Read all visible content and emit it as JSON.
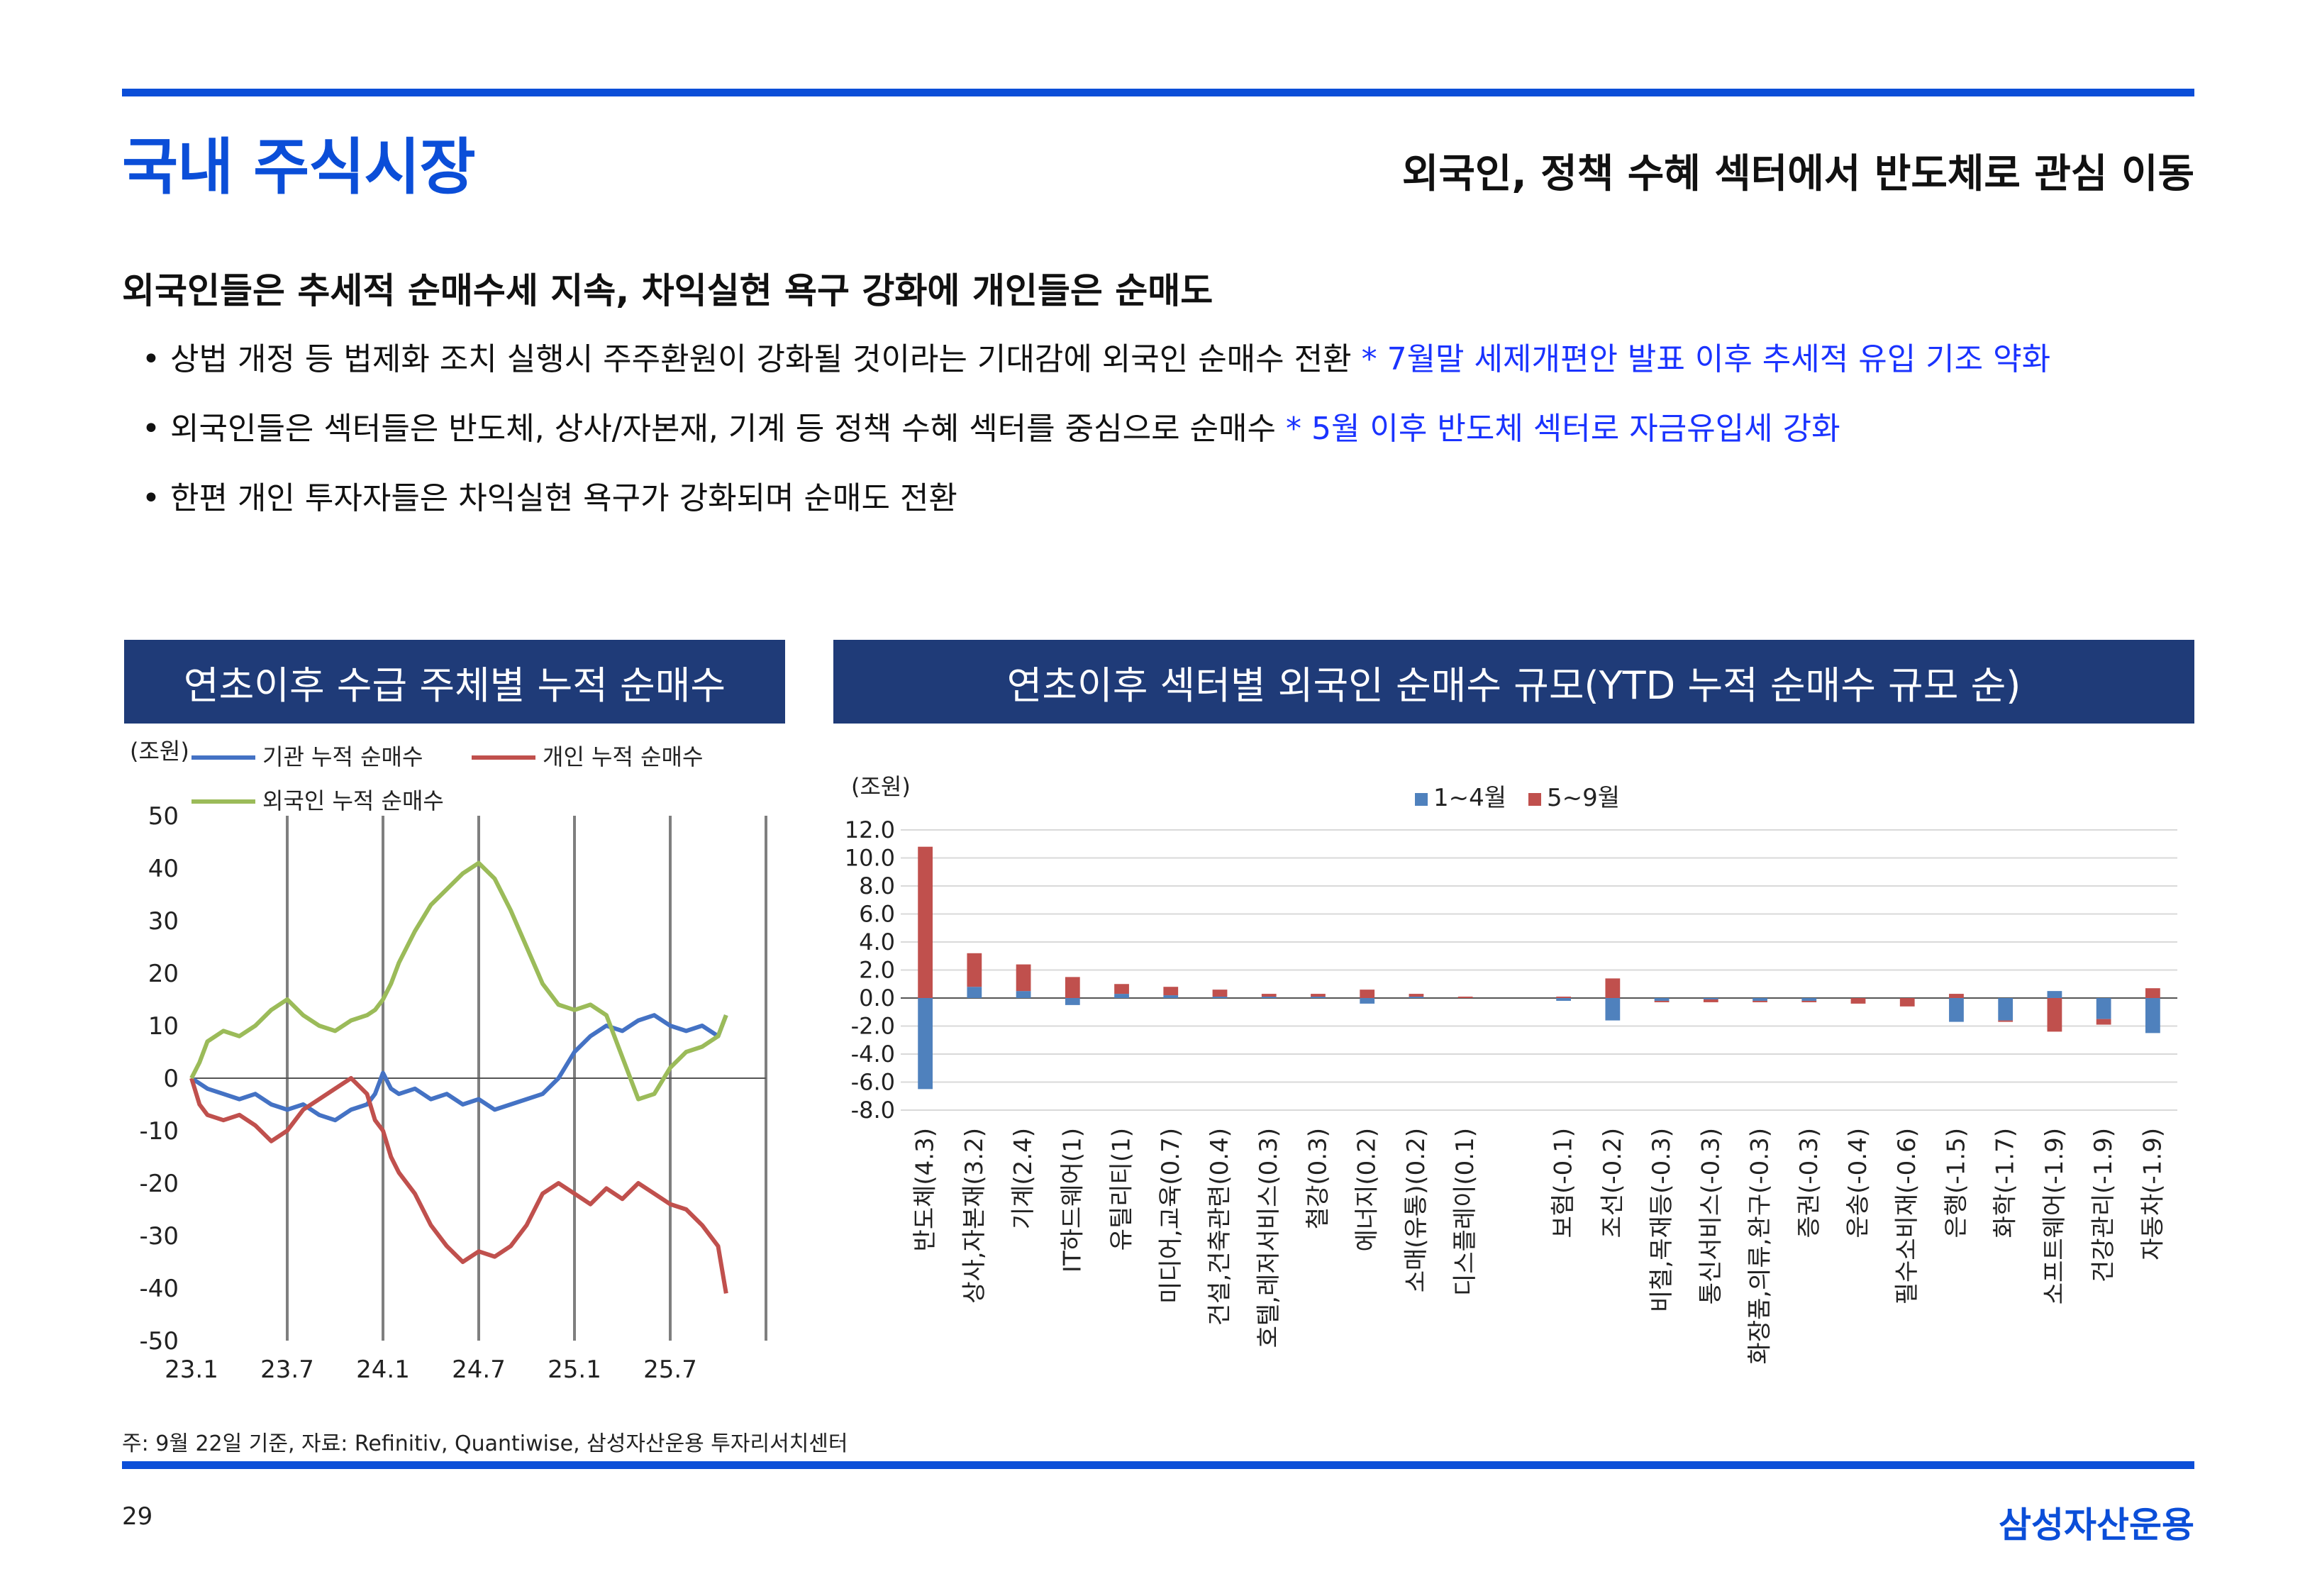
{
  "page": {
    "title": "국내 주식시장",
    "subtitle": "외국인, 정책 수혜 섹터에서 반도체로 관심 이동",
    "headline": "외국인들은 추세적 순매수세 지속, 차익실현 욕구 강화에 개인들은 순매도",
    "bullets": [
      {
        "text": "상법 개정 등 법제화 조치 실행시 주주환원이 강화될 것이라는 기대감에 외국인 순매수 전환",
        "note": "* 7월말 세제개편안 발표 이후 추세적 유입 기조 약화"
      },
      {
        "text": "외국인들은 섹터들은 반도체, 상사/자본재, 기계 등 정책 수혜 섹터를 중심으로 순매수",
        "note": "* 5월 이후 반도체 섹터로 자금유입세 강화"
      },
      {
        "text": "한편 개인 투자자들은 차익실현 욕구가 강화되며 순매도 전환",
        "note": ""
      }
    ],
    "bullet_marker": "•",
    "footnote": "주: 9월 22일 기준, 자료: Refinitiv, Quantiwise, 삼성자산운용 투자리서치센터",
    "page_number": "29",
    "brand": "삼성자산운용"
  },
  "colors": {
    "accent": "#0b4ed8",
    "panel_header": "#1f3b78",
    "institution": "#4472c4",
    "individual": "#c0504d",
    "foreign": "#9bbb59",
    "bar_jan_apr": "#4f81bd",
    "bar_may_sep": "#c0504d",
    "note_text": "#1a33ff"
  },
  "chart_data": [
    {
      "type": "line",
      "title": "연초이후 수급 주체별 누적 순매수",
      "unit_label": "(조원)",
      "ylim": [
        -50,
        50
      ],
      "yticks": [
        "50",
        "40",
        "30",
        "20",
        "10",
        "0",
        "-10",
        "-20",
        "-30",
        "-40",
        "-50"
      ],
      "x_tick_labels": [
        "23.1",
        "23.7",
        "24.1",
        "24.7",
        "25.1",
        "25.7"
      ],
      "x_tick_positions": [
        0,
        6,
        12,
        18,
        24,
        30
      ],
      "xlim": [
        0,
        36
      ],
      "vertical_gridlines_at": [
        6,
        12,
        18,
        24,
        30,
        36
      ],
      "series": [
        {
          "name": "기관 누적 순매수",
          "x": [
            0,
            0.5,
            1,
            2,
            3,
            4,
            5,
            6,
            7,
            8,
            9,
            10,
            11,
            11.5,
            12,
            12.5,
            13,
            14,
            15,
            16,
            17,
            18,
            19,
            20,
            21,
            22,
            23,
            24,
            25,
            26,
            27,
            28,
            29,
            30,
            31,
            32,
            33,
            33.5
          ],
          "values": [
            0,
            -1,
            -2,
            -3,
            -4,
            -3,
            -5,
            -6,
            -5,
            -7,
            -8,
            -6,
            -5,
            -3,
            1,
            -2,
            -3,
            -2,
            -4,
            -3,
            -5,
            -4,
            -6,
            -5,
            -4,
            -3,
            0,
            5,
            8,
            10,
            9,
            11,
            12,
            10,
            9,
            10,
            8,
            12
          ]
        },
        {
          "name": "개인 누적 순매수",
          "x": [
            0,
            0.5,
            1,
            2,
            3,
            4,
            5,
            6,
            7,
            8,
            9,
            10,
            11,
            11.5,
            12,
            12.5,
            13,
            14,
            15,
            16,
            17,
            18,
            19,
            20,
            21,
            22,
            23,
            24,
            25,
            26,
            27,
            28,
            29,
            30,
            31,
            32,
            33,
            33.5
          ],
          "values": [
            0,
            -5,
            -7,
            -8,
            -7,
            -9,
            -12,
            -10,
            -6,
            -4,
            -2,
            0,
            -3,
            -8,
            -10,
            -15,
            -18,
            -22,
            -28,
            -32,
            -35,
            -33,
            -34,
            -32,
            -28,
            -22,
            -20,
            -22,
            -24,
            -21,
            -23,
            -20,
            -22,
            -24,
            -25,
            -28,
            -32,
            -41
          ]
        },
        {
          "name": "외국인 누적 순매수",
          "x": [
            0,
            0.5,
            1,
            2,
            3,
            4,
            5,
            6,
            7,
            8,
            9,
            10,
            11,
            11.5,
            12,
            12.5,
            13,
            14,
            15,
            16,
            17,
            18,
            19,
            20,
            21,
            22,
            23,
            24,
            25,
            26,
            27,
            28,
            29,
            30,
            31,
            32,
            33,
            33.5
          ],
          "values": [
            0,
            3,
            7,
            9,
            8,
            10,
            13,
            15,
            12,
            10,
            9,
            11,
            12,
            13,
            15,
            18,
            22,
            28,
            33,
            36,
            39,
            41,
            38,
            32,
            25,
            18,
            14,
            13,
            14,
            12,
            4,
            -4,
            -3,
            2,
            5,
            6,
            8,
            12
          ]
        }
      ]
    },
    {
      "type": "bar",
      "stacked": true,
      "title": "연초이후 섹터별 외국인 순매수 규모(YTD 누적 순매수 규모 순)",
      "unit_label": "(조원)",
      "ylim": [
        -8,
        12
      ],
      "yticks": [
        "12.0",
        "10.0",
        "8.0",
        "6.0",
        "4.0",
        "2.0",
        "0.0",
        "-2.0",
        "-4.0",
        "-6.0",
        "-8.0"
      ],
      "categories": [
        "반도체(4.3)",
        "상사,자본재(3.2)",
        "기계(2.4)",
        "IT하드웨어(1)",
        "유틸리티(1)",
        "미디어,교육(0.7)",
        "건설,건축관련(0.4)",
        "호텔,레저서비스(0.3)",
        "철강(0.3)",
        "에너지(0.2)",
        "소매(유통)(0.2)",
        "디스플레이(0.1)",
        "",
        "보험(-0.1)",
        "조선(-0.2)",
        "비철,목재등(-0.3)",
        "통신서비스(-0.3)",
        "화장품,의류,완구(-0.3)",
        "증권(-0.3)",
        "운송(-0.4)",
        "필수소비재(-0.6)",
        "은행(-1.5)",
        "화학(-1.7)",
        "소프트웨어(-1.9)",
        "건강관리(-1.9)",
        "자동차(-1.9)"
      ],
      "series": [
        {
          "name": "1~4월",
          "values": [
            -6.5,
            0.8,
            0.5,
            -0.5,
            0.3,
            0.2,
            0.1,
            0.1,
            0.1,
            -0.4,
            0.1,
            0.0,
            0,
            -0.2,
            -1.6,
            -0.2,
            -0.1,
            -0.2,
            -0.2,
            0.0,
            0.0,
            -1.7,
            -1.6,
            0.5,
            -1.5,
            -2.5
          ]
        },
        {
          "name": "5~9월",
          "values": [
            10.8,
            2.4,
            1.9,
            1.5,
            0.7,
            0.6,
            0.5,
            0.2,
            0.2,
            0.6,
            0.2,
            0.1,
            0,
            0.1,
            1.4,
            -0.1,
            -0.2,
            -0.1,
            -0.1,
            -0.4,
            -0.6,
            0.3,
            -0.1,
            -2.4,
            -0.4,
            0.7
          ]
        }
      ]
    }
  ]
}
